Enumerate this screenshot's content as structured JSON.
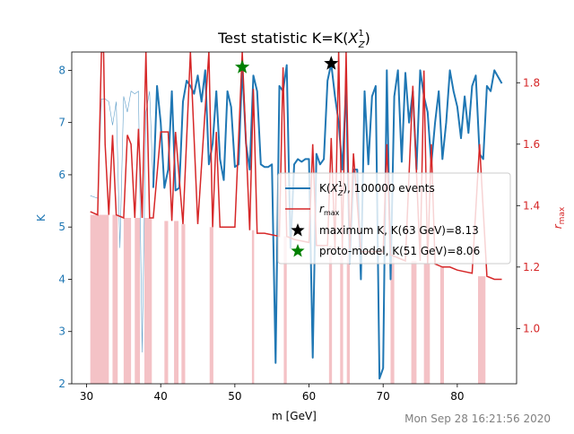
{
  "chart_data": {
    "type": "line",
    "title_main": "Test statistic K=K(",
    "title_sym": "X",
    "title_sup": "1",
    "title_sub": "Z",
    "title_end": ")",
    "xlabel": "m [GeV]",
    "ylabel_left": "K",
    "ylabel_right_base": "r",
    "ylabel_right_sub": "max",
    "xlim": [
      28,
      88
    ],
    "ylim_left": [
      2,
      8.35
    ],
    "ylim_right": [
      0.82,
      1.9
    ],
    "xticks": [
      30,
      40,
      50,
      60,
      70,
      80
    ],
    "yticks_left": [
      2,
      3,
      4,
      5,
      6,
      7,
      8
    ],
    "yticks_right": [
      1.0,
      1.2,
      1.4,
      1.6,
      1.8
    ],
    "timestamp": "Mon Sep 28 16:21:56 2020",
    "colors": {
      "k_series": "#1f77b4",
      "rmax_series": "#d62728",
      "fill": "#f4c2c6",
      "max_marker": "#000000",
      "proto_marker": "#008000",
      "timestamp": "#808080"
    },
    "legend": {
      "position": "center-right",
      "entries": [
        {
          "text": "K(X, 100000 events",
          "sym_sup": "1",
          "sym_sub": "Z",
          "kind": "line",
          "color": "#1f77b4"
        },
        {
          "text": "r",
          "sub": "max",
          "kind": "line",
          "color": "#d62728"
        },
        {
          "text": "maximum K, K(63 GeV)=8.13",
          "kind": "star",
          "color": "#000000"
        },
        {
          "text": "proto-model, K(51 GeV)=8.06",
          "kind": "star",
          "color": "#008000"
        }
      ]
    },
    "series": [
      {
        "name": "K, 100000 events",
        "axis": "left",
        "x": [
          30.5,
          31.5,
          32.0,
          32.5,
          33.0,
          33.5,
          34.0,
          34.5,
          35.0,
          35.5,
          36.0,
          36.5,
          37.0,
          37.5,
          38.0,
          38.5,
          39.0,
          39.5,
          40.0,
          40.5,
          41.0,
          41.5,
          42.0,
          42.5,
          43.0,
          43.5,
          44.0,
          44.5,
          45.0,
          45.5,
          46.0,
          46.5,
          47.0,
          47.5,
          48.0,
          48.5,
          49.0,
          49.5,
          50.0,
          50.5,
          51.0,
          51.5,
          52.0,
          52.5,
          53.0,
          53.5,
          54.0,
          54.5,
          55.0,
          55.5,
          56.0,
          56.5,
          57.0,
          57.5,
          58.0,
          58.5,
          59.0,
          59.5,
          60.0,
          60.5,
          61.0,
          61.5,
          62.0,
          62.5,
          63.0,
          63.5,
          64.0,
          64.5,
          65.0,
          65.5,
          66.0,
          66.5,
          67.0,
          67.5,
          68.0,
          68.5,
          69.0,
          69.5,
          70.0,
          70.5,
          71.0,
          71.5,
          72.0,
          72.5,
          73.0,
          73.5,
          74.0,
          74.5,
          75.0,
          75.5,
          76.0,
          76.5,
          77.0,
          77.5,
          78.0,
          78.5,
          79.0,
          79.5,
          80.0,
          80.5,
          81.0,
          81.5,
          82.0,
          82.5,
          83.0,
          83.5,
          84.0,
          84.5,
          85.0,
          86.0
        ],
        "y": [
          5.6,
          5.55,
          7.45,
          7.45,
          7.4,
          6.95,
          7.4,
          4.6,
          7.5,
          7.2,
          7.6,
          7.55,
          7.6,
          2.6,
          7.2,
          7.6,
          5.75,
          7.7,
          7.0,
          5.75,
          6.1,
          7.6,
          5.7,
          5.75,
          7.4,
          7.8,
          7.7,
          7.55,
          7.9,
          7.4,
          8.0,
          6.2,
          6.6,
          7.6,
          6.3,
          5.9,
          7.6,
          7.3,
          6.15,
          6.2,
          8.06,
          6.6,
          6.1,
          7.9,
          7.6,
          6.2,
          6.15,
          6.15,
          6.2,
          2.4,
          7.7,
          7.6,
          8.1,
          4.6,
          6.2,
          6.3,
          6.25,
          6.3,
          6.3,
          2.5,
          6.4,
          6.2,
          6.3,
          7.8,
          8.13,
          7.5,
          7.0,
          6.1,
          7.7,
          4.3,
          6.1,
          6.1,
          4.0,
          7.6,
          6.2,
          7.5,
          7.7,
          2.1,
          2.3,
          8.0,
          4.0,
          7.5,
          8.0,
          6.25,
          7.95,
          7.0,
          7.6,
          6.1,
          8.0,
          7.5,
          7.2,
          6.2,
          7.0,
          7.6,
          6.3,
          7.0,
          8.0,
          7.6,
          7.3,
          6.7,
          7.5,
          6.8,
          7.7,
          7.9,
          6.4,
          6.3,
          7.7,
          7.6,
          8.0,
          7.75
        ]
      },
      {
        "name": "rmax",
        "axis": "right",
        "x": [
          30.5,
          31.5,
          32.0,
          32.3,
          32.5,
          33.0,
          33.5,
          34.0,
          35.0,
          35.5,
          36.0,
          36.5,
          37.0,
          37.5,
          38.0,
          38.5,
          39.0,
          40.0,
          41.0,
          41.5,
          42.0,
          43.0,
          44.0,
          45.0,
          46.5,
          47.0,
          47.5,
          48.0,
          50.0,
          51.0,
          52.0,
          52.5,
          53.0,
          54.0,
          56.0,
          56.5,
          57.0,
          58.0,
          60.0,
          60.5,
          61.0,
          62.5,
          63.0,
          63.5,
          64.0,
          64.5,
          65.0,
          65.5,
          66.0,
          67.0,
          70.0,
          70.5,
          71.0,
          72.0,
          73.0,
          74.0,
          75.0,
          75.5,
          76.0,
          76.5,
          77.0,
          78.0,
          79.0,
          80.0,
          82.0,
          83.0,
          84.0,
          85.0,
          86.0
        ],
        "y": [
          1.38,
          1.37,
          1.9,
          1.9,
          1.6,
          1.37,
          1.63,
          1.37,
          1.36,
          1.63,
          1.6,
          1.36,
          1.65,
          1.36,
          1.9,
          1.36,
          1.36,
          1.64,
          1.64,
          1.35,
          1.64,
          1.34,
          1.9,
          1.34,
          1.9,
          1.33,
          1.64,
          1.33,
          1.33,
          1.9,
          1.32,
          1.78,
          1.31,
          1.31,
          1.3,
          1.85,
          1.3,
          1.29,
          1.28,
          1.6,
          1.27,
          1.27,
          1.62,
          1.26,
          1.9,
          1.26,
          1.9,
          1.26,
          1.57,
          1.25,
          1.25,
          1.6,
          1.24,
          1.23,
          1.22,
          1.79,
          1.22,
          1.84,
          1.21,
          1.6,
          1.21,
          1.2,
          1.2,
          1.19,
          1.18,
          1.6,
          1.17,
          1.16,
          1.16
        ]
      }
    ],
    "shaded_regions": [
      {
        "x0": 30.5,
        "x1": 33.0,
        "ytop": 1.37
      },
      {
        "x0": 33.5,
        "x1": 34.2,
        "ytop": 1.37
      },
      {
        "x0": 35.0,
        "x1": 36.0,
        "ytop": 1.36
      },
      {
        "x0": 36.5,
        "x1": 37.2,
        "ytop": 1.36
      },
      {
        "x0": 37.8,
        "x1": 38.8,
        "ytop": 1.36
      },
      {
        "x0": 40.5,
        "x1": 41.0,
        "ytop": 1.35
      },
      {
        "x0": 41.8,
        "x1": 42.4,
        "ytop": 1.35
      },
      {
        "x0": 42.8,
        "x1": 43.3,
        "ytop": 1.34
      },
      {
        "x0": 46.6,
        "x1": 47.1,
        "ytop": 1.33
      },
      {
        "x0": 52.3,
        "x1": 52.6,
        "ytop": 1.32
      },
      {
        "x0": 56.6,
        "x1": 57.0,
        "ytop": 1.3
      },
      {
        "x0": 62.7,
        "x1": 63.1,
        "ytop": 1.27
      },
      {
        "x0": 64.2,
        "x1": 64.6,
        "ytop": 1.26
      },
      {
        "x0": 65.1,
        "x1": 65.5,
        "ytop": 1.26
      },
      {
        "x0": 71.0,
        "x1": 71.5,
        "ytop": 1.24
      },
      {
        "x0": 73.8,
        "x1": 74.5,
        "ytop": 1.22
      },
      {
        "x0": 75.5,
        "x1": 76.3,
        "ytop": 1.21
      },
      {
        "x0": 77.7,
        "x1": 78.2,
        "ytop": 1.2
      },
      {
        "x0": 82.8,
        "x1": 83.8,
        "ytop": 1.17
      }
    ],
    "markers": [
      {
        "name": "maximum K",
        "x": 63.0,
        "y": 8.13,
        "color": "#000000"
      },
      {
        "name": "proto-model",
        "x": 51.0,
        "y": 8.06,
        "color": "#008000"
      }
    ]
  }
}
